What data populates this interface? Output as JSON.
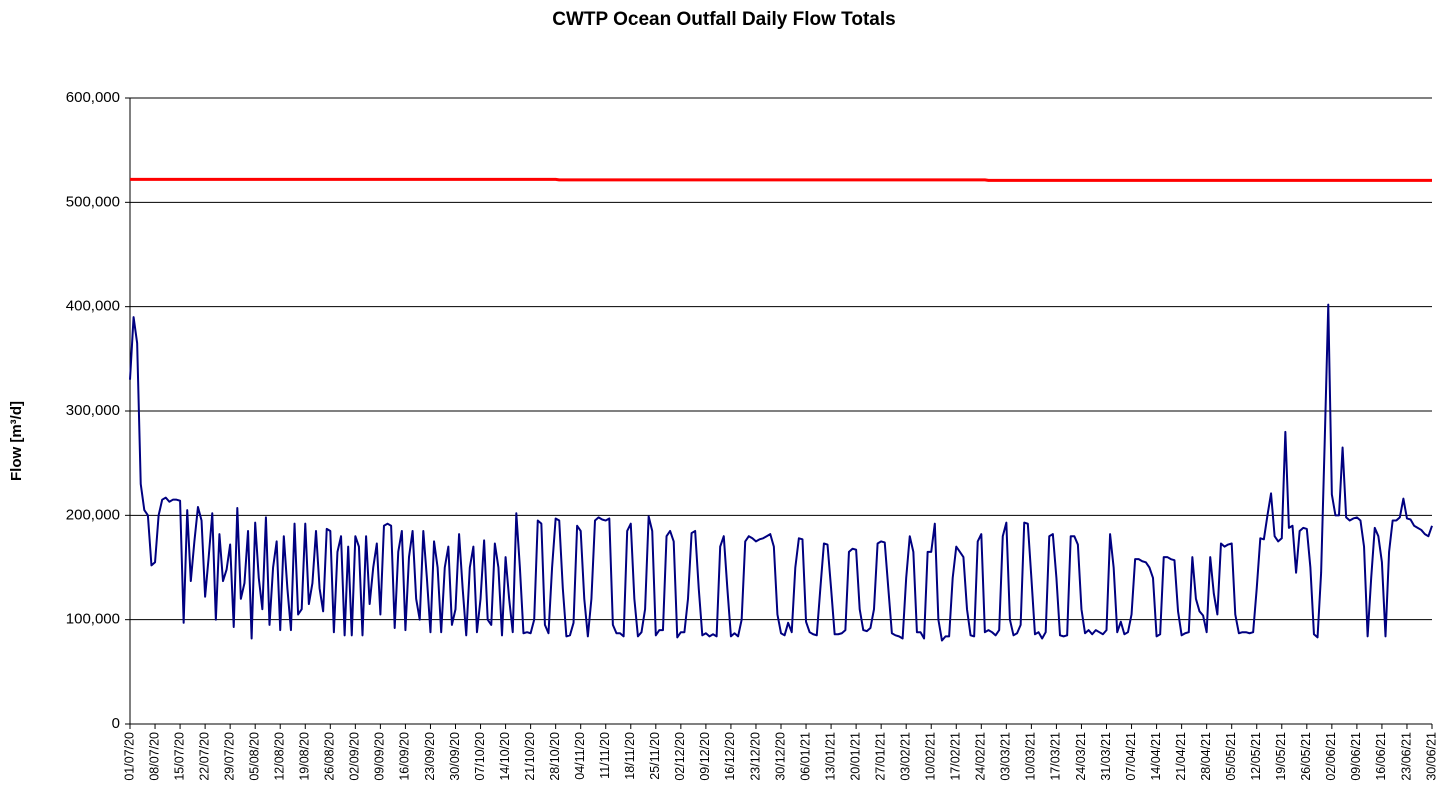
{
  "chart_data": {
    "type": "line",
    "title": "CWTP Ocean Outfall Daily Flow Totals",
    "y_label": "Flow [m³/d]",
    "ylim": [
      0,
      600000
    ],
    "yticks": [
      0,
      {
        "value": 100000,
        "label": "100,000"
      },
      {
        "value": 200000,
        "label": "200,000"
      },
      {
        "value": 300000,
        "label": "300,000"
      },
      {
        "value": 400000,
        "label": "400,000"
      },
      {
        "value": 500000,
        "label": "500,000"
      },
      {
        "value": 600000,
        "label": "600,000"
      }
    ],
    "grid": true,
    "categories": [
      "01/07/20",
      null,
      null,
      null,
      null,
      null,
      null,
      "08/07/20",
      null,
      null,
      null,
      null,
      null,
      null,
      "15/07/20",
      null,
      null,
      null,
      null,
      null,
      null,
      "22/07/20",
      null,
      null,
      null,
      null,
      null,
      null,
      "29/07/20",
      null,
      null,
      null,
      null,
      null,
      null,
      "05/08/20",
      null,
      null,
      null,
      null,
      null,
      null,
      "12/08/20",
      null,
      null,
      null,
      null,
      null,
      null,
      "19/08/20",
      null,
      null,
      null,
      null,
      null,
      null,
      "26/08/20",
      null,
      null,
      null,
      null,
      null,
      null,
      "02/09/20",
      null,
      null,
      null,
      null,
      null,
      null,
      "09/09/20",
      null,
      null,
      null,
      null,
      null,
      null,
      "16/09/20",
      null,
      null,
      null,
      null,
      null,
      null,
      "23/09/20",
      null,
      null,
      null,
      null,
      null,
      null,
      "30/09/20",
      null,
      null,
      null,
      null,
      null,
      null,
      "07/10/20",
      null,
      null,
      null,
      null,
      null,
      null,
      "14/10/20",
      null,
      null,
      null,
      null,
      null,
      null,
      "21/10/20",
      null,
      null,
      null,
      null,
      null,
      null,
      "28/10/20",
      null,
      null,
      null,
      null,
      null,
      null,
      "04/11/20",
      null,
      null,
      null,
      null,
      null,
      null,
      "11/11/20",
      null,
      null,
      null,
      null,
      null,
      null,
      "18/11/20",
      null,
      null,
      null,
      null,
      null,
      null,
      "25/11/20",
      null,
      null,
      null,
      null,
      null,
      null,
      "02/12/20",
      null,
      null,
      null,
      null,
      null,
      null,
      "09/12/20",
      null,
      null,
      null,
      null,
      null,
      null,
      "16/12/20",
      null,
      null,
      null,
      null,
      null,
      null,
      "23/12/20",
      null,
      null,
      null,
      null,
      null,
      null,
      "30/12/20",
      null,
      null,
      null,
      null,
      null,
      null,
      "06/01/21",
      null,
      null,
      null,
      null,
      null,
      null,
      "13/01/21",
      null,
      null,
      null,
      null,
      null,
      null,
      "20/01/21",
      null,
      null,
      null,
      null,
      null,
      null,
      "27/01/21",
      null,
      null,
      null,
      null,
      null,
      null,
      "03/02/21",
      null,
      null,
      null,
      null,
      null,
      null,
      "10/02/21",
      null,
      null,
      null,
      null,
      null,
      null,
      "17/02/21",
      null,
      null,
      null,
      null,
      null,
      null,
      "24/02/21",
      null,
      null,
      null,
      null,
      null,
      null,
      "03/03/21",
      null,
      null,
      null,
      null,
      null,
      null,
      "10/03/21",
      null,
      null,
      null,
      null,
      null,
      null,
      "17/03/21",
      null,
      null,
      null,
      null,
      null,
      null,
      "24/03/21",
      null,
      null,
      null,
      null,
      null,
      null,
      "31/03/21",
      null,
      null,
      null,
      null,
      null,
      null,
      "07/04/21",
      null,
      null,
      null,
      null,
      null,
      null,
      "14/04/21",
      null,
      null,
      null,
      null,
      null,
      null,
      "21/04/21",
      null,
      null,
      null,
      null,
      null,
      null,
      "28/04/21",
      null,
      null,
      null,
      null,
      null,
      null,
      "05/05/21",
      null,
      null,
      null,
      null,
      null,
      null,
      "12/05/21",
      null,
      null,
      null,
      null,
      null,
      null,
      "19/05/21",
      null,
      null,
      null,
      null,
      null,
      null,
      "26/05/21",
      null,
      null,
      null,
      null,
      null,
      null,
      "02/06/21",
      null,
      null,
      null,
      null,
      null,
      null,
      "09/06/21",
      null,
      null,
      null,
      null,
      null,
      null,
      "16/06/21",
      null,
      null,
      null,
      null,
      null,
      null,
      "23/06/21",
      null,
      null,
      null,
      null,
      null,
      null,
      "30/06/21"
    ],
    "series": [
      {
        "color": "#000080",
        "values": [
          330000,
          390000,
          365000,
          230000,
          205000,
          200000,
          152000,
          155000,
          200000,
          215000,
          217000,
          213000,
          215000,
          215000,
          214000,
          97000,
          205000,
          137000,
          175000,
          208000,
          195000,
          122000,
          160000,
          202000,
          100000,
          182000,
          137000,
          148000,
          172000,
          93000,
          207000,
          120000,
          135000,
          185000,
          82000,
          193000,
          140000,
          110000,
          198000,
          95000,
          150000,
          175000,
          90000,
          180000,
          130000,
          90000,
          192000,
          105000,
          110000,
          192000,
          115000,
          135000,
          185000,
          130000,
          108000,
          187000,
          185000,
          88000,
          165000,
          180000,
          85000,
          170000,
          85000,
          180000,
          170000,
          85000,
          180000,
          115000,
          150000,
          173000,
          105000,
          190000,
          192000,
          190000,
          92000,
          165000,
          185000,
          90000,
          160000,
          185000,
          120000,
          100000,
          185000,
          140000,
          88000,
          175000,
          150000,
          88000,
          150000,
          170000,
          95000,
          110000,
          182000,
          130000,
          85000,
          150000,
          170000,
          88000,
          120000,
          176000,
          100000,
          95000,
          173000,
          150000,
          85000,
          160000,
          120000,
          88000,
          202000,
          150000,
          87000,
          88000,
          87000,
          100000,
          195000,
          192000,
          95000,
          87000,
          150000,
          197000,
          195000,
          130000,
          84000,
          85000,
          97000,
          190000,
          185000,
          120000,
          84000,
          120000,
          195000,
          198000,
          196000,
          195000,
          197000,
          95000,
          87000,
          87000,
          84000,
          185000,
          192000,
          120000,
          84000,
          88000,
          110000,
          199000,
          185000,
          85000,
          90000,
          90000,
          180000,
          185000,
          175000,
          83000,
          88000,
          88000,
          120000,
          183000,
          185000,
          130000,
          85000,
          87000,
          84000,
          86000,
          84000,
          170000,
          180000,
          130000,
          84000,
          87000,
          84000,
          100000,
          175000,
          180000,
          178000,
          175000,
          177000,
          178000,
          180000,
          182000,
          170000,
          105000,
          87000,
          85000,
          97000,
          88000,
          150000,
          178000,
          177000,
          98000,
          88000,
          86000,
          85000,
          130000,
          173000,
          172000,
          130000,
          86000,
          86000,
          87000,
          90000,
          165000,
          168000,
          167000,
          110000,
          90000,
          89000,
          92000,
          110000,
          173000,
          175000,
          174000,
          130000,
          87000,
          85000,
          84000,
          82000,
          140000,
          180000,
          165000,
          88000,
          88000,
          82000,
          165000,
          165000,
          192000,
          100000,
          80000,
          84000,
          84000,
          140000,
          170000,
          165000,
          160000,
          110000,
          85000,
          84000,
          175000,
          182000,
          88000,
          90000,
          88000,
          85000,
          90000,
          180000,
          193000,
          100000,
          85000,
          87000,
          95000,
          193000,
          192000,
          140000,
          86000,
          88000,
          82000,
          88000,
          180000,
          182000,
          140000,
          85000,
          84000,
          85000,
          180000,
          180000,
          172000,
          110000,
          87000,
          90000,
          86000,
          90000,
          88000,
          86000,
          90000,
          182000,
          150000,
          88000,
          98000,
          86000,
          88000,
          105000,
          158000,
          158000,
          156000,
          155000,
          150000,
          140000,
          84000,
          86000,
          160000,
          160000,
          158000,
          157000,
          108000,
          85000,
          87000,
          88000,
          160000,
          120000,
          108000,
          104000,
          88000,
          160000,
          125000,
          105000,
          173000,
          170000,
          172000,
          173000,
          105000,
          87000,
          88000,
          88000,
          87000,
          88000,
          130000,
          178000,
          177000,
          200000,
          221000,
          180000,
          175000,
          178000,
          280000,
          188000,
          190000,
          145000,
          185000,
          188000,
          187000,
          150000,
          86000,
          83000,
          145000,
          270000,
          402000,
          220000,
          200000,
          200000,
          265000,
          198000,
          195000,
          197000,
          198000,
          195000,
          170000,
          84000,
          140000,
          188000,
          180000,
          155000,
          84000,
          165000,
          195000,
          195000,
          198000,
          216000,
          197000,
          196000,
          190000,
          188000,
          186000,
          182000,
          180000,
          190000
        ]
      },
      {
        "color": "#ff0000",
        "values": [
          522000,
          522000,
          522000,
          522000,
          522000,
          522000,
          522000,
          522000,
          522000,
          522000,
          522000,
          522000,
          522000,
          522000,
          522000,
          522000,
          522000,
          522000,
          522000,
          522000,
          522000,
          522000,
          522000,
          522000,
          522000,
          522000,
          522000,
          522000,
          522000,
          522000,
          522000,
          522000,
          522000,
          522000,
          522000,
          522000,
          522000,
          522000,
          522000,
          522000,
          522000,
          522000,
          522000,
          522000,
          522000,
          522000,
          522000,
          522000,
          522000,
          522000,
          522000,
          522000,
          522000,
          522000,
          522000,
          522000,
          522000,
          522000,
          522000,
          522000,
          522000,
          522000,
          522000,
          522000,
          522000,
          522000,
          522000,
          522000,
          522000,
          522000,
          522000,
          522000,
          522000,
          522000,
          522000,
          522000,
          522000,
          522000,
          522000,
          522000,
          522000,
          522000,
          522000,
          522000,
          522000,
          522000,
          522000,
          522000,
          522000,
          522000,
          522000,
          522000,
          522000,
          522000,
          522000,
          522000,
          522000,
          522000,
          522000,
          522000,
          522000,
          522000,
          522000,
          522000,
          522000,
          522000,
          522000,
          522000,
          522000,
          522000,
          522000,
          522000,
          522000,
          522000,
          522000,
          522000,
          522000,
          522000,
          522000,
          522000,
          521500,
          521500,
          521500,
          521500,
          521500,
          521500,
          521500,
          521500,
          521500,
          521500,
          521500,
          521500,
          521500,
          521500,
          521500,
          521500,
          521500,
          521500,
          521500,
          521500,
          521500,
          521500,
          521500,
          521500,
          521500,
          521500,
          521500,
          521500,
          521500,
          521500,
          521500,
          521500,
          521500,
          521500,
          521500,
          521500,
          521500,
          521500,
          521500,
          521500,
          521500,
          521500,
          521500,
          521500,
          521500,
          521500,
          521500,
          521500,
          521500,
          521500,
          521500,
          521500,
          521500,
          521500,
          521500,
          521500,
          521500,
          521500,
          521500,
          521500,
          521500,
          521500,
          521500,
          521500,
          521500,
          521500,
          521500,
          521500,
          521500,
          521500,
          521500,
          521500,
          521500,
          521500,
          521500,
          521500,
          521500,
          521500,
          521500,
          521500,
          521500,
          521500,
          521500,
          521500,
          521500,
          521500,
          521500,
          521500,
          521500,
          521500,
          521500,
          521500,
          521500,
          521500,
          521500,
          521500,
          521500,
          521500,
          521500,
          521500,
          521500,
          521500,
          521500,
          521500,
          521500,
          521500,
          521500,
          521500,
          521500,
          521500,
          521500,
          521500,
          521500,
          521500,
          521500,
          521500,
          521500,
          521500,
          521500,
          521500,
          521000,
          521000,
          521000,
          521000,
          521000,
          521000,
          521000,
          521000,
          521000,
          521000,
          521000,
          521000,
          521000,
          521000,
          521000,
          521000,
          521000,
          521000,
          521000,
          521000,
          521000,
          521000,
          521000,
          521000,
          521000,
          521000,
          521000,
          521000,
          521000,
          521000,
          521000,
          521000,
          521000,
          521000,
          521000,
          521000,
          521000,
          521000,
          521000,
          521000,
          521000,
          521000,
          521000,
          521000,
          521000,
          521000,
          521000,
          521000,
          521000,
          521000,
          521000,
          521000,
          521000,
          521000,
          521000,
          521000,
          521000,
          521000,
          521000,
          521000,
          521000,
          521000,
          521000,
          521000,
          521000,
          521000,
          521000,
          521000,
          521000,
          521000,
          521000,
          521000,
          521000,
          521000,
          521000,
          521000,
          521000,
          521000,
          521000,
          521000,
          521000,
          521000,
          521000,
          521000,
          521000,
          521000,
          521000,
          521000,
          521000,
          521000,
          521000,
          521000,
          521000,
          521000,
          521000,
          521000,
          521000,
          521000,
          521000,
          521000,
          521000,
          521000,
          521000,
          521000,
          521000,
          521000,
          521000,
          521000,
          521000,
          521000,
          521000,
          521000,
          521000,
          521000,
          521000,
          521000,
          521000,
          521000,
          521000,
          521000,
          521000,
          521000,
          521000,
          521000,
          521000
        ]
      }
    ]
  }
}
